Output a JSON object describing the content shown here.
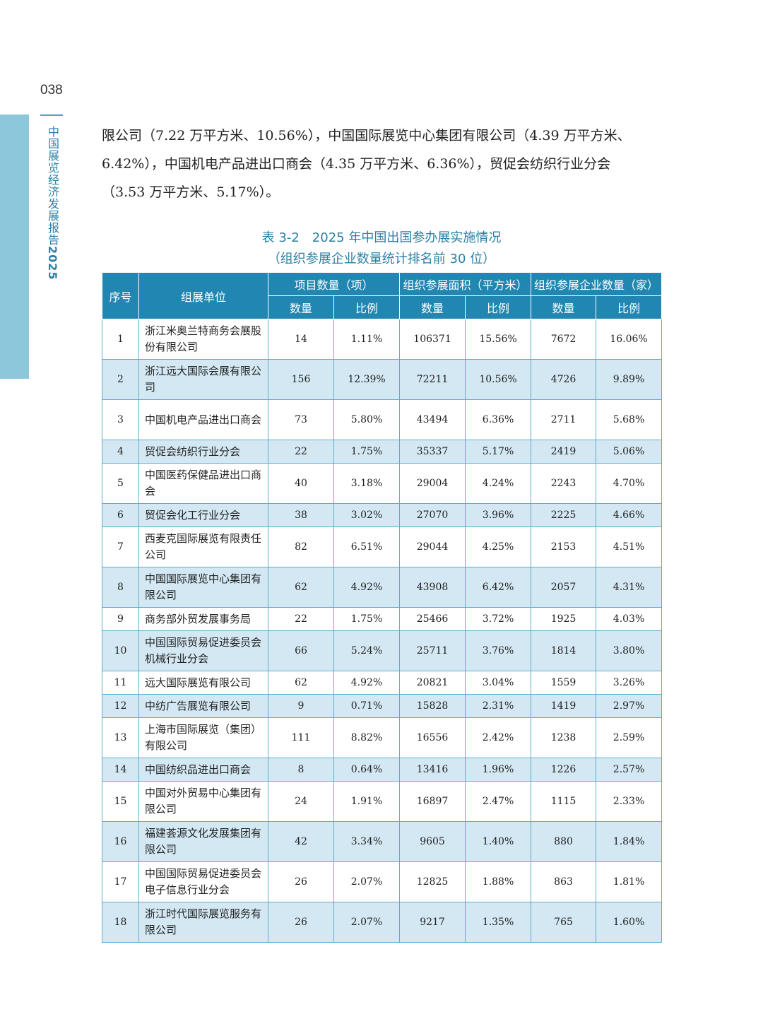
{
  "page": {
    "number": "038",
    "side_title": "中国展览经济发展报告",
    "side_year": "2025"
  },
  "paragraph": [
    "限公司（7.22 万平方米、10.56%），中国国际展览中心集团有限公司（4.39 万平方米、",
    "6.42%），中国机电产品进出口商会（4.35 万平方米、6.36%），贸促会纺织行业分会",
    "（3.53 万平方米、5.17%）。"
  ],
  "table": {
    "title": "表 3-2　2025 年中国出国参办展实施情况",
    "subtitle": "（组织参展企业数量统计排名前 30 位）",
    "headers": {
      "seq": "序号",
      "org": "组展单位",
      "projects": "项目数量（项）",
      "area": "组织参展面积（平方米）",
      "companies": "组织参展企业数量（家）",
      "count": "数量",
      "ratio": "比例"
    },
    "rows": [
      {
        "seq": "1",
        "name": "浙江米奥兰特商务会展股份有限公司",
        "proj": "14",
        "proj_pct": "1.11%",
        "area": "106371",
        "area_pct": "15.56%",
        "comp": "7672",
        "comp_pct": "16.06%"
      },
      {
        "seq": "2",
        "name": "浙江远大国际会展有限公司",
        "proj": "156",
        "proj_pct": "12.39%",
        "area": "72211",
        "area_pct": "10.56%",
        "comp": "4726",
        "comp_pct": "9.89%"
      },
      {
        "seq": "3",
        "name": "中国机电产品进出口商会",
        "proj": "73",
        "proj_pct": "5.80%",
        "area": "43494",
        "area_pct": "6.36%",
        "comp": "2711",
        "comp_pct": "5.68%"
      },
      {
        "seq": "4",
        "name": "贸促会纺织行业分会",
        "proj": "22",
        "proj_pct": "1.75%",
        "area": "35337",
        "area_pct": "5.17%",
        "comp": "2419",
        "comp_pct": "5.06%"
      },
      {
        "seq": "5",
        "name": "中国医药保健品进出口商会",
        "proj": "40",
        "proj_pct": "3.18%",
        "area": "29004",
        "area_pct": "4.24%",
        "comp": "2243",
        "comp_pct": "4.70%"
      },
      {
        "seq": "6",
        "name": "贸促会化工行业分会",
        "proj": "38",
        "proj_pct": "3.02%",
        "area": "27070",
        "area_pct": "3.96%",
        "comp": "2225",
        "comp_pct": "4.66%"
      },
      {
        "seq": "7",
        "name": "西麦克国际展览有限责任公司",
        "proj": "82",
        "proj_pct": "6.51%",
        "area": "29044",
        "area_pct": "4.25%",
        "comp": "2153",
        "comp_pct": "4.51%"
      },
      {
        "seq": "8",
        "name": "中国国际展览中心集团有限公司",
        "proj": "62",
        "proj_pct": "4.92%",
        "area": "43908",
        "area_pct": "6.42%",
        "comp": "2057",
        "comp_pct": "4.31%"
      },
      {
        "seq": "9",
        "name": "商务部外贸发展事务局",
        "proj": "22",
        "proj_pct": "1.75%",
        "area": "25466",
        "area_pct": "3.72%",
        "comp": "1925",
        "comp_pct": "4.03%"
      },
      {
        "seq": "10",
        "name": "中国国际贸易促进委员会机械行业分会",
        "proj": "66",
        "proj_pct": "5.24%",
        "area": "25711",
        "area_pct": "3.76%",
        "comp": "1814",
        "comp_pct": "3.80%"
      },
      {
        "seq": "11",
        "name": "远大国际展览有限公司",
        "proj": "62",
        "proj_pct": "4.92%",
        "area": "20821",
        "area_pct": "3.04%",
        "comp": "1559",
        "comp_pct": "3.26%"
      },
      {
        "seq": "12",
        "name": "中纺广告展览有限公司",
        "proj": "9",
        "proj_pct": "0.71%",
        "area": "15828",
        "area_pct": "2.31%",
        "comp": "1419",
        "comp_pct": "2.97%"
      },
      {
        "seq": "13",
        "name": "上海市国际展览（集团）有限公司",
        "proj": "111",
        "proj_pct": "8.82%",
        "area": "16556",
        "area_pct": "2.42%",
        "comp": "1238",
        "comp_pct": "2.59%"
      },
      {
        "seq": "14",
        "name": "中国纺织品进出口商会",
        "proj": "8",
        "proj_pct": "0.64%",
        "area": "13416",
        "area_pct": "1.96%",
        "comp": "1226",
        "comp_pct": "2.57%"
      },
      {
        "seq": "15",
        "name": "中国对外贸易中心集团有限公司",
        "proj": "24",
        "proj_pct": "1.91%",
        "area": "16897",
        "area_pct": "2.47%",
        "comp": "1115",
        "comp_pct": "2.33%"
      },
      {
        "seq": "16",
        "name": "福建荟源文化发展集团有限公司",
        "proj": "42",
        "proj_pct": "3.34%",
        "area": "9605",
        "area_pct": "1.40%",
        "comp": "880",
        "comp_pct": "1.84%"
      },
      {
        "seq": "17",
        "name": "中国国际贸易促进委员会电子信息行业分会",
        "proj": "26",
        "proj_pct": "2.07%",
        "area": "12825",
        "area_pct": "1.88%",
        "comp": "863",
        "comp_pct": "1.81%"
      },
      {
        "seq": "18",
        "name": "浙江时代国际展览服务有限公司",
        "proj": "26",
        "proj_pct": "2.07%",
        "area": "9217",
        "area_pct": "1.35%",
        "comp": "765",
        "comp_pct": "1.60%"
      }
    ]
  },
  "colors": {
    "accent": "#2187b2",
    "side_band": "#8cc7dc",
    "row_shade": "#d3e8f3",
    "title_text": "#2a7fa5"
  }
}
